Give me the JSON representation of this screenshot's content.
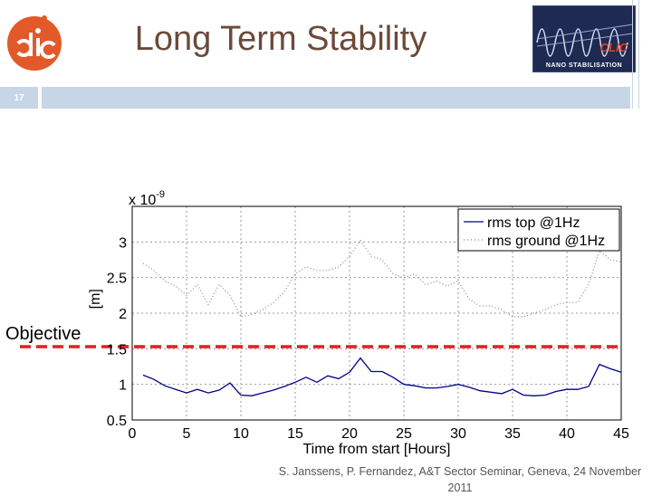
{
  "slide": {
    "title": "Long Term Stability",
    "number": "17",
    "objective_label": "Objective",
    "footer": "S. Janssens, P. Fernandez, A&T Sector Seminar, Geneva,  24 November 2011",
    "logo_left": "clic-logo",
    "logo_right": {
      "text": "NANO STABILISATION",
      "brand": "CLIC"
    }
  },
  "colors": {
    "title": "#6b4a3a",
    "header_bar": "#c7d6e6",
    "series_top": "#00008b",
    "series_ground": "#888888",
    "objective": "#e02020"
  },
  "chart_data": {
    "type": "line",
    "xlabel": "Time from start [Hours]",
    "ylabel": "[m]",
    "y_multiplier": "x 10",
    "y_multiplier_exp": "-9",
    "xlim": [
      0,
      45
    ],
    "ylim": [
      0.5,
      3.5
    ],
    "xticks": [
      0,
      5,
      10,
      15,
      20,
      25,
      30,
      35,
      40,
      45
    ],
    "yticks": [
      0.5,
      1,
      1.5,
      2,
      2.5,
      3
    ],
    "ytick_labels": [
      "0.5",
      "1",
      "1.5",
      "2",
      "2.5",
      "3"
    ],
    "grid": true,
    "legend_position": "top-right",
    "objective_line": 1.53,
    "series": [
      {
        "name": "rms top @1Hz",
        "style": "solid",
        "color": "#00008b",
        "x": [
          1,
          2,
          3,
          4,
          5,
          6,
          7,
          8,
          9,
          10,
          11,
          12,
          13,
          14,
          15,
          16,
          17,
          18,
          19,
          20,
          21,
          22,
          23,
          24,
          25,
          26,
          27,
          28,
          29,
          30,
          31,
          32,
          33,
          34,
          35,
          36,
          37,
          38,
          39,
          40,
          41,
          42,
          43,
          44,
          45
        ],
        "y": [
          1.13,
          1.07,
          0.98,
          0.93,
          0.88,
          0.93,
          0.88,
          0.92,
          1.02,
          0.85,
          0.84,
          0.88,
          0.92,
          0.97,
          1.03,
          1.1,
          1.03,
          1.12,
          1.08,
          1.17,
          1.37,
          1.18,
          1.18,
          1.1,
          1.0,
          0.98,
          0.95,
          0.95,
          0.97,
          1.0,
          0.96,
          0.91,
          0.89,
          0.87,
          0.93,
          0.85,
          0.84,
          0.85,
          0.9,
          0.93,
          0.93,
          0.97,
          1.28,
          1.22,
          1.17
        ]
      },
      {
        "name": "rms ground @1Hz",
        "style": "dotted",
        "color": "#888888",
        "x": [
          1,
          2,
          3,
          4,
          5,
          6,
          7,
          8,
          9,
          10,
          11,
          12,
          13,
          14,
          15,
          16,
          17,
          18,
          19,
          20,
          21,
          22,
          23,
          24,
          25,
          26,
          27,
          28,
          29,
          30,
          31,
          32,
          33,
          34,
          35,
          36,
          37,
          38,
          39,
          40,
          41,
          42,
          43,
          44,
          45
        ],
        "y": [
          2.7,
          2.6,
          2.45,
          2.38,
          2.25,
          2.4,
          2.12,
          2.4,
          2.25,
          1.95,
          1.98,
          2.05,
          2.15,
          2.3,
          2.55,
          2.65,
          2.6,
          2.6,
          2.65,
          2.8,
          3.02,
          2.8,
          2.75,
          2.55,
          2.5,
          2.55,
          2.4,
          2.45,
          2.38,
          2.45,
          2.2,
          2.1,
          2.1,
          2.05,
          1.95,
          1.95,
          2.0,
          2.05,
          2.12,
          2.15,
          2.15,
          2.4,
          2.88,
          2.75,
          2.72
        ]
      }
    ]
  }
}
